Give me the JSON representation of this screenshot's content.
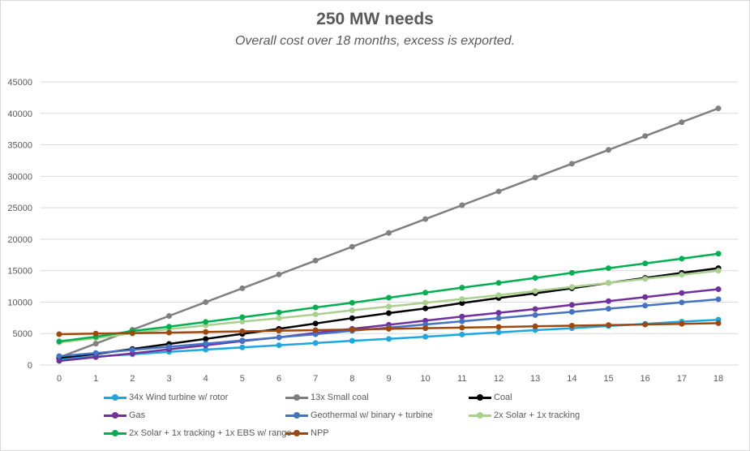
{
  "chart_data": {
    "type": "line",
    "title": "250 MW needs",
    "subtitle": "Overall cost over 18 months, excess is exported.",
    "xlabel": "",
    "ylabel": "",
    "x": [
      0,
      1,
      2,
      3,
      4,
      5,
      6,
      7,
      8,
      9,
      10,
      11,
      12,
      13,
      14,
      15,
      16,
      17,
      18
    ],
    "ylim": [
      0,
      45000
    ],
    "yticks": [
      0,
      5000,
      10000,
      15000,
      20000,
      25000,
      30000,
      35000,
      40000,
      45000
    ],
    "grid": true,
    "legend_position": "bottom",
    "series": [
      {
        "name": "34x Wind turbine w/ rotor",
        "color": "#1ea6e0",
        "values": [
          1000,
          1350,
          1700,
          2100,
          2450,
          2800,
          3150,
          3500,
          3850,
          4150,
          4500,
          4850,
          5200,
          5550,
          5850,
          6200,
          6550,
          6900,
          7200
        ]
      },
      {
        "name": "13x Small coal",
        "color": "#808080",
        "values": [
          1200,
          3400,
          5600,
          7800,
          10000,
          12200,
          14400,
          16600,
          18800,
          21000,
          23200,
          25400,
          27600,
          29800,
          32000,
          34200,
          36400,
          38600,
          40800
        ]
      },
      {
        "name": "Coal",
        "color": "#000000",
        "values": [
          1150,
          1750,
          2550,
          3350,
          4150,
          4950,
          5750,
          6600,
          7450,
          8250,
          9000,
          9850,
          10650,
          11400,
          12200,
          13050,
          13850,
          14650,
          15400
        ]
      },
      {
        "name": "Gas",
        "color": "#7030a0",
        "values": [
          650,
          1250,
          1850,
          2500,
          3150,
          3800,
          4400,
          5100,
          5750,
          6400,
          7050,
          7700,
          8300,
          8900,
          9550,
          10150,
          10800,
          11450,
          12050
        ]
      },
      {
        "name": "Geothermal w/ binary + turbine",
        "color": "#4472c4",
        "values": [
          1400,
          1900,
          2400,
          2900,
          3400,
          3900,
          4400,
          4900,
          5450,
          5950,
          6450,
          6950,
          7450,
          7950,
          8450,
          8950,
          9450,
          9950,
          10450
        ]
      },
      {
        "name": "2x Solar + 1x tracking",
        "color": "#a9d18e",
        "values": [
          3600,
          4250,
          5050,
          5700,
          6300,
          6900,
          7450,
          8050,
          8700,
          9300,
          9900,
          10500,
          11100,
          11750,
          12400,
          13050,
          13700,
          14350,
          15000
        ]
      },
      {
        "name": "2x Solar + 1x tracking + 1x EBS w/ range",
        "color": "#00b050",
        "values": [
          3750,
          4500,
          5400,
          6100,
          6850,
          7600,
          8350,
          9150,
          9900,
          10700,
          11500,
          12300,
          13050,
          13850,
          14650,
          15400,
          16150,
          16900,
          17700
        ]
      },
      {
        "name": "NPP",
        "color": "#9e480e",
        "values": [
          4900,
          5000,
          5050,
          5150,
          5250,
          5350,
          5450,
          5550,
          5650,
          5750,
          5850,
          5950,
          6050,
          6150,
          6250,
          6350,
          6450,
          6550,
          6650
        ]
      }
    ]
  }
}
